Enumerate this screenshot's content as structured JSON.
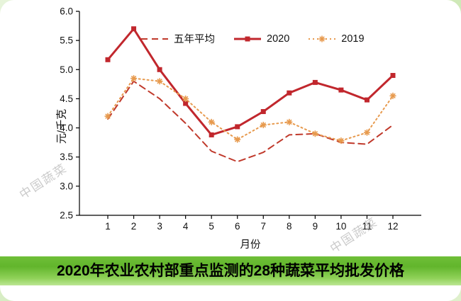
{
  "watermark": "中国蔬菜",
  "footer": {
    "title": "2020年农业农村部重点监测的28种蔬菜平均批发价格"
  },
  "chart_data": {
    "type": "line",
    "x": [
      "1",
      "2",
      "3",
      "4",
      "5",
      "6",
      "7",
      "8",
      "9",
      "10",
      "11",
      "12"
    ],
    "xlabel": "月份",
    "ylabel": "元/千克",
    "ylim": [
      2.5,
      6.0
    ],
    "ytick_step": 0.5,
    "grid": false,
    "legend_position": "top-inside",
    "series": [
      {
        "name": "五年平均",
        "color": "#c0392b",
        "style": "dashed",
        "marker": "none",
        "values": [
          4.15,
          4.8,
          4.5,
          4.08,
          3.6,
          3.42,
          3.58,
          3.88,
          3.9,
          3.75,
          3.72,
          4.05
        ]
      },
      {
        "name": "2020",
        "color": "#c1272d",
        "style": "solid",
        "marker": "square",
        "values": [
          5.17,
          5.7,
          5.0,
          4.42,
          3.88,
          4.02,
          4.28,
          4.6,
          4.78,
          4.65,
          4.48,
          4.9
        ]
      },
      {
        "name": "2019",
        "color": "#e79a4e",
        "style": "dotted",
        "marker": "star",
        "values": [
          4.2,
          4.85,
          4.8,
          4.5,
          4.1,
          3.8,
          4.05,
          4.1,
          3.9,
          3.78,
          3.92,
          4.55
        ]
      }
    ]
  }
}
